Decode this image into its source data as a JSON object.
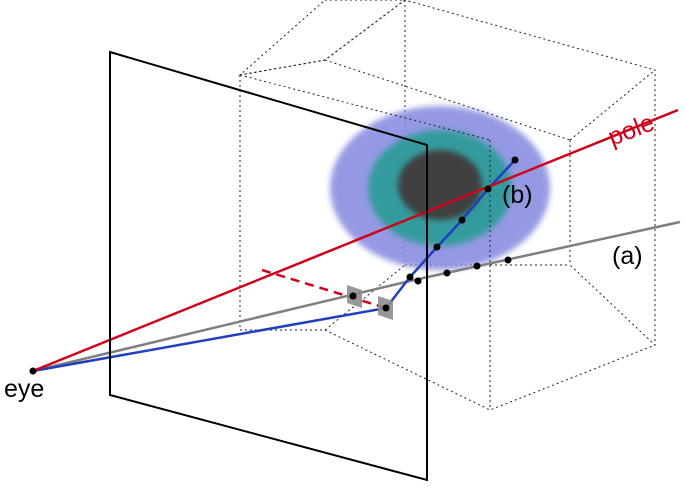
{
  "labels": {
    "eye": "eye",
    "pole": "pole",
    "ray_a": "(a)",
    "ray_b": "(b)"
  },
  "colors": {
    "pole": "#d0021b",
    "ray_a": "#7f7f7f",
    "ray_b": "#1f3fbf",
    "outline": "#000000",
    "halo_outer": "#8a8fe0",
    "halo_middle": "#2e9c9a",
    "halo_core": "#404040"
  }
}
